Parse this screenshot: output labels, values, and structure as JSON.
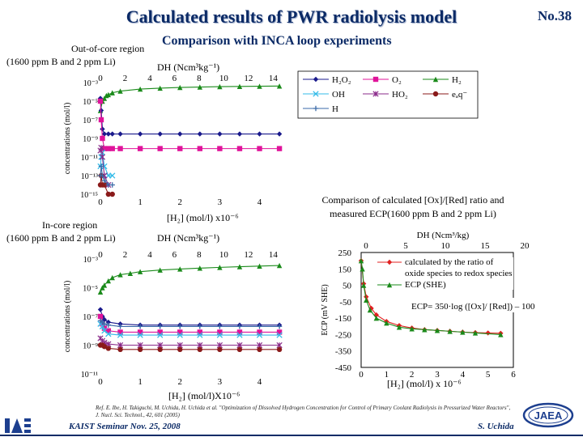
{
  "slide": {
    "title": "Calculated results of PWR radiolysis model",
    "number": "No.38",
    "subtitle": "Comparison with INCA loop experiments",
    "reference_line1": "Ref. E. Ibe, H. Takiguchi, M. Uchida, H. Uchida et al. \"Optimization of Dissolved Hydrogen Concentration for Control of Primary Coolant Radiolysis in Pressurized Water Reactors\",",
    "reference_line2": "J. Nucl. Sci. Technol., 42, 601 (2005)",
    "footer_left": "KAIST Seminar Nov. 25, 2008",
    "footer_right": "S. Uchida",
    "logo_left": "IAE",
    "logo_right": "JAEA"
  },
  "legend": {
    "entries": [
      {
        "label": "H₂O₂",
        "color": "#1a1a8c",
        "marker": "diamond"
      },
      {
        "label": "O₂",
        "color": "#e0139a",
        "marker": "square"
      },
      {
        "label": "H₂",
        "color": "#1a8a1a",
        "marker": "triangle"
      },
      {
        "label": "OH",
        "color": "#33bbe8",
        "marker": "x"
      },
      {
        "label": "HO₂",
        "color": "#8a2a8a",
        "marker": "star"
      },
      {
        "label": "eₐq⁻",
        "color": "#8a1a1a",
        "marker": "circle"
      },
      {
        "label": "H",
        "color": "#3a6aa8",
        "marker": "plus"
      }
    ]
  },
  "chart_data": [
    {
      "type": "line",
      "region": "Out-of-core region",
      "region_condition": "(1600 ppm B and 2 ppm Li)",
      "xlabel": "[H₂]  (mol/l) x10⁻⁶",
      "ylabel": "concentrations  (mol/l)",
      "x2label": "DH  (Ncm³kg⁻¹)",
      "xlim": [
        0,
        4.6
      ],
      "x2ticks": [
        "0",
        "2",
        "4",
        "6",
        "8",
        "10",
        "12",
        "14"
      ],
      "xticks": [
        "0",
        "1",
        "2",
        "3",
        "4"
      ],
      "yscale": "log",
      "ylim": [
        1e-15,
        0.001
      ],
      "yticks": [
        "10⁻³",
        "10⁻⁵",
        "10⁻⁷",
        "10⁻⁹",
        "10⁻¹¹",
        "10⁻¹³",
        "10⁻¹⁵"
      ],
      "series": [
        {
          "name": "H₂",
          "x": [
            0,
            0.05,
            0.1,
            0.15,
            0.2,
            0.3,
            0.5,
            1,
            1.5,
            2,
            2.5,
            3,
            3.5,
            4,
            4.5
          ],
          "y": [
            1e-06,
            1e-05,
            2e-05,
            4e-05,
            5e-05,
            8e-05,
            0.00012,
            0.0002,
            0.00025,
            0.0003,
            0.00033,
            0.00036,
            0.00038,
            0.0004,
            0.00042
          ]
        },
        {
          "name": "H₂O₂",
          "x": [
            0,
            0.02,
            0.05,
            0.1,
            0.2,
            0.3,
            0.5,
            1,
            1.5,
            2,
            2.5,
            3,
            3.5,
            4,
            4.5
          ],
          "y": [
            2e-05,
            1e-06,
            1e-08,
            3e-09,
            3e-09,
            3e-09,
            3e-09,
            3e-09,
            3e-09,
            3e-09,
            3e-09,
            3e-09,
            3e-09,
            3e-09,
            3e-09
          ]
        },
        {
          "name": "O₂",
          "x": [
            0,
            0.02,
            0.05,
            0.1,
            0.2,
            0.3,
            0.5,
            1,
            1.5,
            2,
            2.5,
            3,
            3.5,
            4,
            4.5
          ],
          "y": [
            1e-05,
            1e-07,
            1e-09,
            8e-11,
            8e-11,
            8e-11,
            8e-11,
            8e-11,
            8e-11,
            8e-11,
            8e-11,
            8e-11,
            8e-11,
            8e-11,
            8e-11
          ]
        },
        {
          "name": "OH",
          "x": [
            0,
            0.02,
            0.05,
            0.1,
            0.2,
            0.3
          ],
          "y": [
            1e-12,
            1e-11,
            3e-11,
            1e-12,
            1e-13,
            1e-13
          ]
        },
        {
          "name": "HO₂",
          "x": [
            0,
            0.02,
            0.05,
            0.1,
            0.2
          ],
          "y": [
            5e-11,
            1e-10,
            1e-11,
            1e-13,
            1e-14
          ]
        },
        {
          "name": "eₐq⁻",
          "x": [
            0,
            0.02,
            0.05,
            0.1,
            0.2,
            0.3
          ],
          "y": [
            1e-14,
            1e-13,
            1e-14,
            1e-14,
            1e-15,
            1e-15
          ]
        },
        {
          "name": "H",
          "x": [
            0,
            0.02,
            0.05,
            0.1,
            0.2,
            0.3
          ],
          "y": [
            1e-13,
            1e-12,
            1e-13,
            3e-14,
            1e-14,
            1e-14
          ]
        }
      ]
    },
    {
      "type": "line",
      "region": "In-core region",
      "region_condition": "(1600 ppm B and 2 ppm Li)",
      "xlabel": "[H₂]  (mol/l)X10⁻⁶",
      "ylabel": "concentrations  (mol/l)",
      "x2label": "DH (Ncm³kg⁻¹)",
      "xlim": [
        0,
        4.6
      ],
      "x2ticks": [
        "0",
        "2",
        "4",
        "6",
        "8",
        "10",
        "12",
        "14"
      ],
      "xticks": [
        "0",
        "1",
        "2",
        "3",
        "4"
      ],
      "yscale": "log",
      "ylim": [
        1e-11,
        0.001
      ],
      "yticks": [
        "10⁻³",
        "10⁻⁵",
        "10⁻⁷",
        "10⁻⁹",
        "10⁻¹¹"
      ],
      "series": [
        {
          "name": "H₂",
          "x": [
            0,
            0.05,
            0.1,
            0.2,
            0.3,
            0.5,
            0.75,
            1,
            1.5,
            2,
            2.5,
            3,
            3.5,
            4,
            4.5
          ],
          "y": [
            5e-06,
            1e-05,
            1.5e-05,
            3e-05,
            5e-05,
            8e-05,
            0.0001,
            0.00013,
            0.00017,
            0.0002,
            0.00023,
            0.00026,
            0.00029,
            0.00032,
            0.00035
          ]
        },
        {
          "name": "H₂O₂",
          "x": [
            0,
            0.05,
            0.1,
            0.2,
            0.5,
            1,
            1.5,
            2,
            2.5,
            3,
            3.5,
            4,
            4.5
          ],
          "y": [
            3e-07,
            1e-07,
            6e-08,
            4e-08,
            3e-08,
            2.5e-08,
            2.5e-08,
            2.5e-08,
            2.5e-08,
            2.5e-08,
            2.5e-08,
            2.5e-08,
            2.5e-08
          ]
        },
        {
          "name": "O₂",
          "x": [
            0,
            0.05,
            0.1,
            0.2,
            0.5,
            1,
            1.5,
            2,
            2.5,
            3,
            3.5,
            4,
            4.5
          ],
          "y": [
            1e-07,
            3e-08,
            1.5e-08,
            1e-08,
            8e-09,
            8e-09,
            8e-09,
            8e-09,
            8e-09,
            8e-09,
            8e-09,
            8e-09,
            8e-09
          ]
        },
        {
          "name": "OH",
          "x": [
            0,
            0.05,
            0.1,
            0.2,
            0.5,
            1,
            1.5,
            2,
            2.5,
            3,
            3.5,
            4,
            4.5
          ],
          "y": [
            3e-08,
            2e-08,
            1e-08,
            6e-09,
            5e-09,
            5e-09,
            5e-09,
            5e-09,
            5e-09,
            5e-09,
            5e-09,
            5e-09,
            5e-09
          ]
        },
        {
          "name": "HO₂",
          "x": [
            0,
            0.05,
            0.1,
            0.2,
            0.5,
            1,
            1.5,
            2,
            2.5,
            3,
            3.5,
            4,
            4.5
          ],
          "y": [
            3e-09,
            2e-09,
            1.5e-09,
            1.2e-09,
            1e-09,
            1e-09,
            1e-09,
            1e-09,
            1e-09,
            1e-09,
            1e-09,
            1e-09,
            1e-09
          ]
        },
        {
          "name": "eₐq⁻",
          "x": [
            0,
            0.05,
            0.1,
            0.2,
            0.5,
            1,
            1.5,
            2,
            2.5,
            3,
            3.5,
            4,
            4.5
          ],
          "y": [
            1e-09,
            1e-09,
            8e-10,
            6e-10,
            5e-10,
            5e-10,
            5e-10,
            5e-10,
            5e-10,
            5e-10,
            5e-10,
            5e-10,
            5e-10
          ]
        },
        {
          "name": "H",
          "x": [
            0,
            0.05,
            0.1,
            0.2,
            0.5,
            1,
            1.5,
            2,
            2.5,
            3,
            3.5,
            4,
            4.5
          ],
          "y": [
            5e-08,
            4e-08,
            3e-08,
            2.5e-08,
            2e-08,
            2e-08,
            2e-08,
            2e-08,
            2e-08,
            2e-08,
            2e-08,
            2e-08,
            2e-08
          ]
        }
      ]
    },
    {
      "type": "line",
      "title": "Comparison of calculated [Ox]/[Red] ratio and measured ECP(1600 ppm B and 2 ppm Li)",
      "xlabel": "[H₂]  (mol/l) x 10⁻⁶",
      "ylabel": "ECP (mV SHE)",
      "x2label": "DH (Ncm³/kg)",
      "xlim": [
        0,
        6
      ],
      "ylim": [
        -450,
        250
      ],
      "xticks": [
        "0",
        "1",
        "2",
        "3",
        "4",
        "5",
        "6"
      ],
      "x2ticks": [
        "0",
        "5",
        "10",
        "15",
        "20"
      ],
      "yticks": [
        "250",
        "150",
        "50",
        "-50",
        "-150",
        "-250",
        "-350",
        "-450"
      ],
      "formula": "ECP= 350·log ([Ox]/ [Red]) – 100",
      "series": [
        {
          "name": "calculated by the ratio of oxide species to redox species",
          "color": "#e02020",
          "x": [
            0,
            0.1,
            0.2,
            0.4,
            0.6,
            1,
            1.5,
            2,
            2.5,
            3,
            3.5,
            4,
            4.5,
            5,
            5.5
          ],
          "y": [
            200,
            60,
            -20,
            -90,
            -130,
            -170,
            -195,
            -210,
            -220,
            -225,
            -230,
            -235,
            -238,
            -240,
            -242
          ]
        },
        {
          "name": "ECP (SHE)",
          "color": "#1a8a1a",
          "x": [
            0,
            0.05,
            0.1,
            0.2,
            0.35,
            0.6,
            1,
            1.5,
            2,
            2.5,
            3,
            3.5,
            4,
            4.5,
            5.5
          ],
          "y": [
            200,
            150,
            50,
            -40,
            -100,
            -150,
            -180,
            -205,
            -215,
            -220,
            -225,
            -230,
            -235,
            -240,
            -250
          ]
        }
      ]
    }
  ]
}
